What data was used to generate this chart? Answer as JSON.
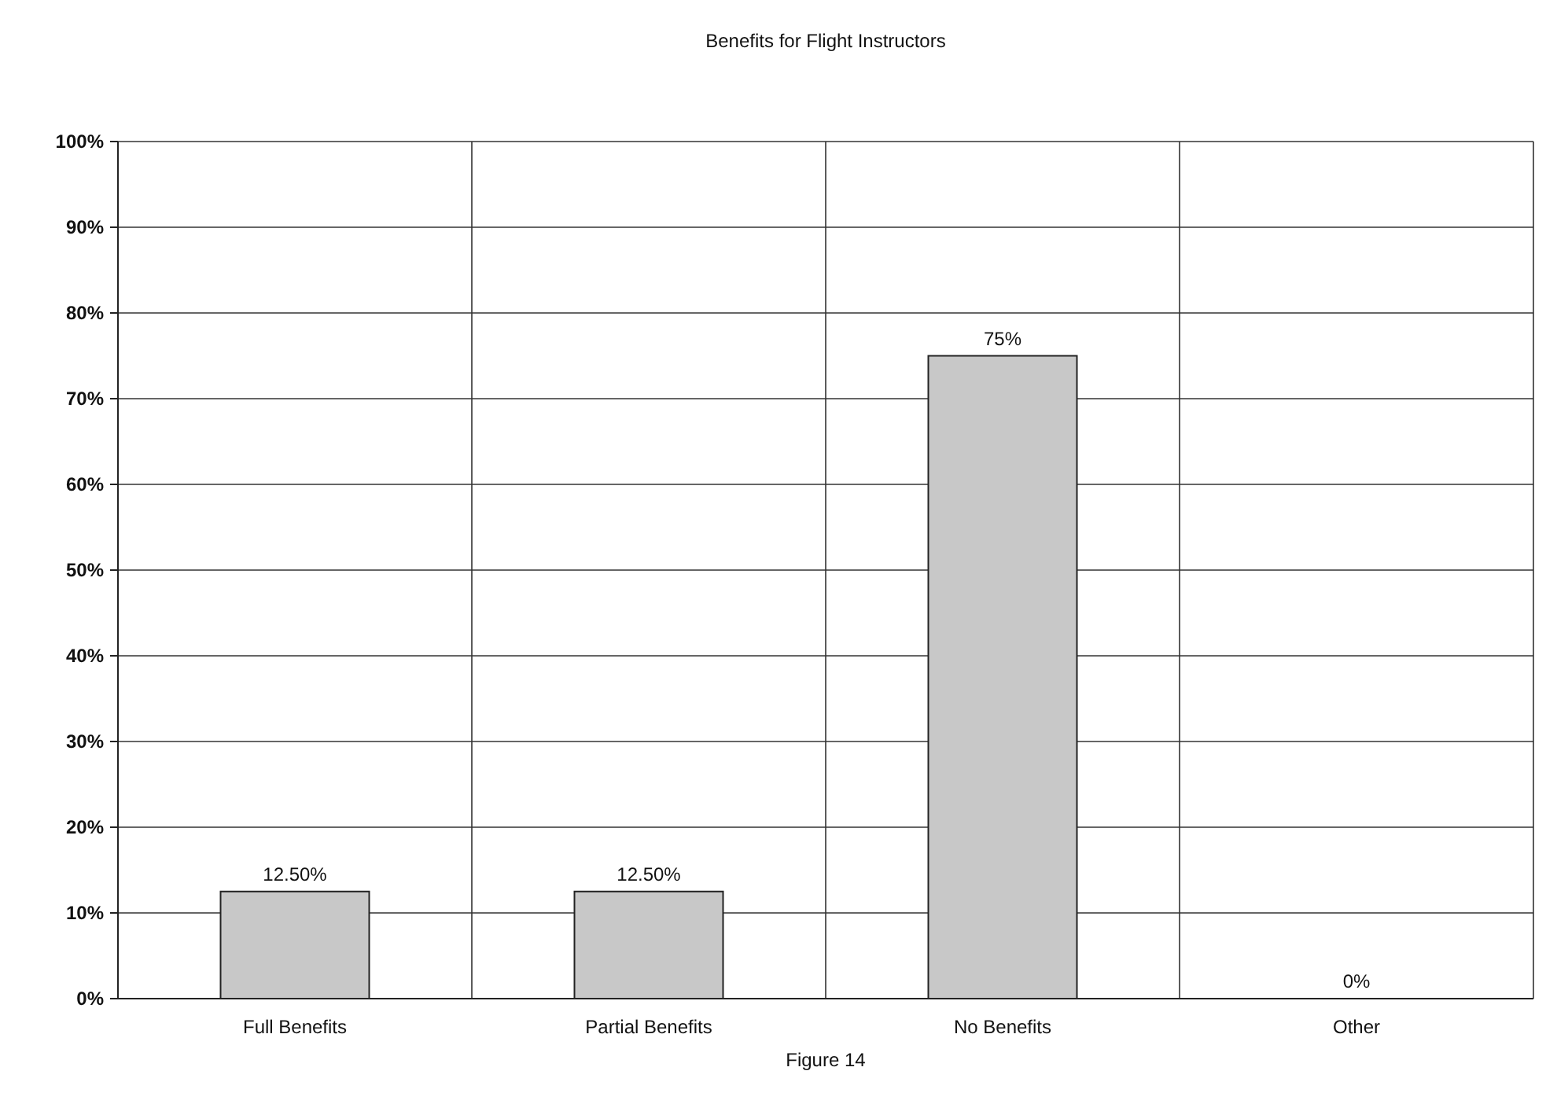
{
  "chart_data": {
    "type": "bar",
    "title": "Benefits for Flight Instructors",
    "categories": [
      "Full Benefits",
      "Partial Benefits",
      "No Benefits",
      "Other"
    ],
    "values": [
      12.5,
      12.5,
      75,
      0
    ],
    "value_labels": [
      "12.50%",
      "12.50%",
      "75%",
      "0%"
    ],
    "color": "#c8c8c8",
    "ylim": [
      0,
      100
    ],
    "yticks": [
      {
        "value": 0,
        "label": "0%"
      },
      {
        "value": 10,
        "label": "10%"
      },
      {
        "value": 20,
        "label": "20%"
      },
      {
        "value": 30,
        "label": "30%"
      },
      {
        "value": 40,
        "label": "40%"
      },
      {
        "value": 50,
        "label": "50%"
      },
      {
        "value": 60,
        "label": "60%"
      },
      {
        "value": 70,
        "label": "70%"
      },
      {
        "value": 80,
        "label": "80%"
      },
      {
        "value": 90,
        "label": "90%"
      },
      {
        "value": 100,
        "label": "100%"
      }
    ],
    "grid": true,
    "annotations": [
      "Figure 14"
    ]
  }
}
